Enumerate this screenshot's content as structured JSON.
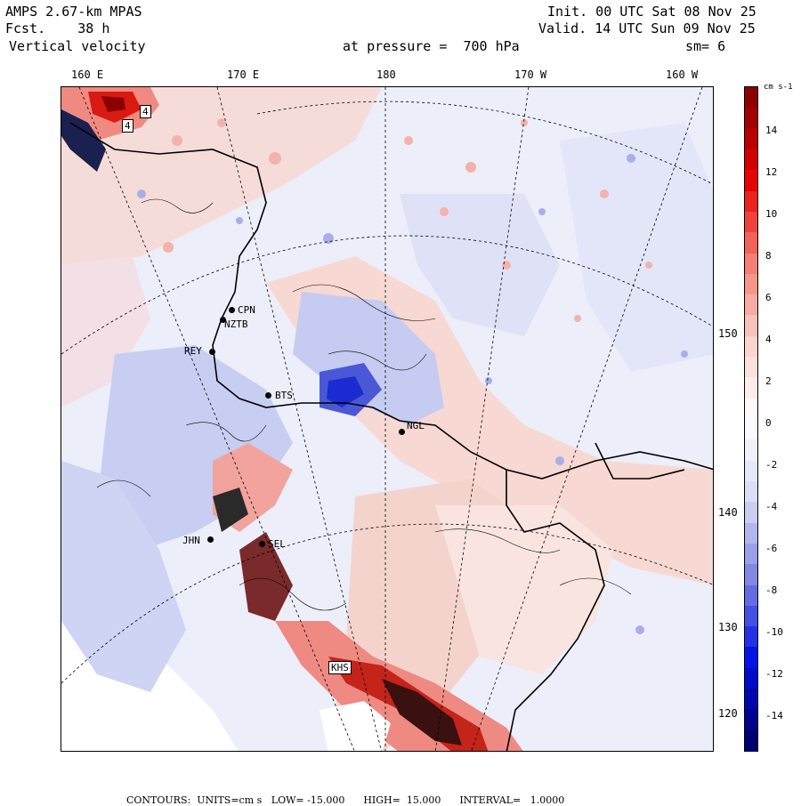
{
  "header": {
    "model": "AMPS 2.67-km MPAS",
    "forecast": "Fcst.    38 h",
    "field": "Vertical velocity",
    "init": "Init. 00 UTC Sat 08 Nov 25",
    "valid": "Valid. 14 UTC Sun 09 Nov 25",
    "level": "at pressure =  700 hPa",
    "smoothing": "sm= 6"
  },
  "longitude_labels": [
    "160 E",
    "170 E",
    "180",
    "170 W",
    "160 W"
  ],
  "latitude_labels": [
    "150 W",
    "140 W",
    "130 W",
    "120 W"
  ],
  "stations": [
    "CPN",
    "NZTB",
    "REY",
    "BTS",
    "NGL",
    "JHN",
    "SEL",
    "KHS"
  ],
  "contour_labels": [
    "4",
    "4"
  ],
  "colorbar": {
    "unit": "cm s-1",
    "ticks": [
      "14",
      "12",
      "10",
      "8",
      "6",
      "4",
      "2",
      "0",
      "-2",
      "-4",
      "-6",
      "-8",
      "-10",
      "-12",
      "-14"
    ],
    "colors": {
      "max": "#8c0000",
      "strong_pos": "#e60000",
      "mid_pos": "#f47a6e",
      "weak_pos": "#f9cfc8",
      "neutral": "#ffffff",
      "weak_neg": "#d8dbf5",
      "mid_neg": "#7c82e0",
      "strong_neg": "#0010e6",
      "min": "#00006e"
    }
  },
  "footer": {
    "contours": "CONTOURS:  UNITS=cm s",
    "low": "LOW= -15.000",
    "high": "HIGH=  15.000",
    "interval": "INTERVAL=   1.0000"
  }
}
